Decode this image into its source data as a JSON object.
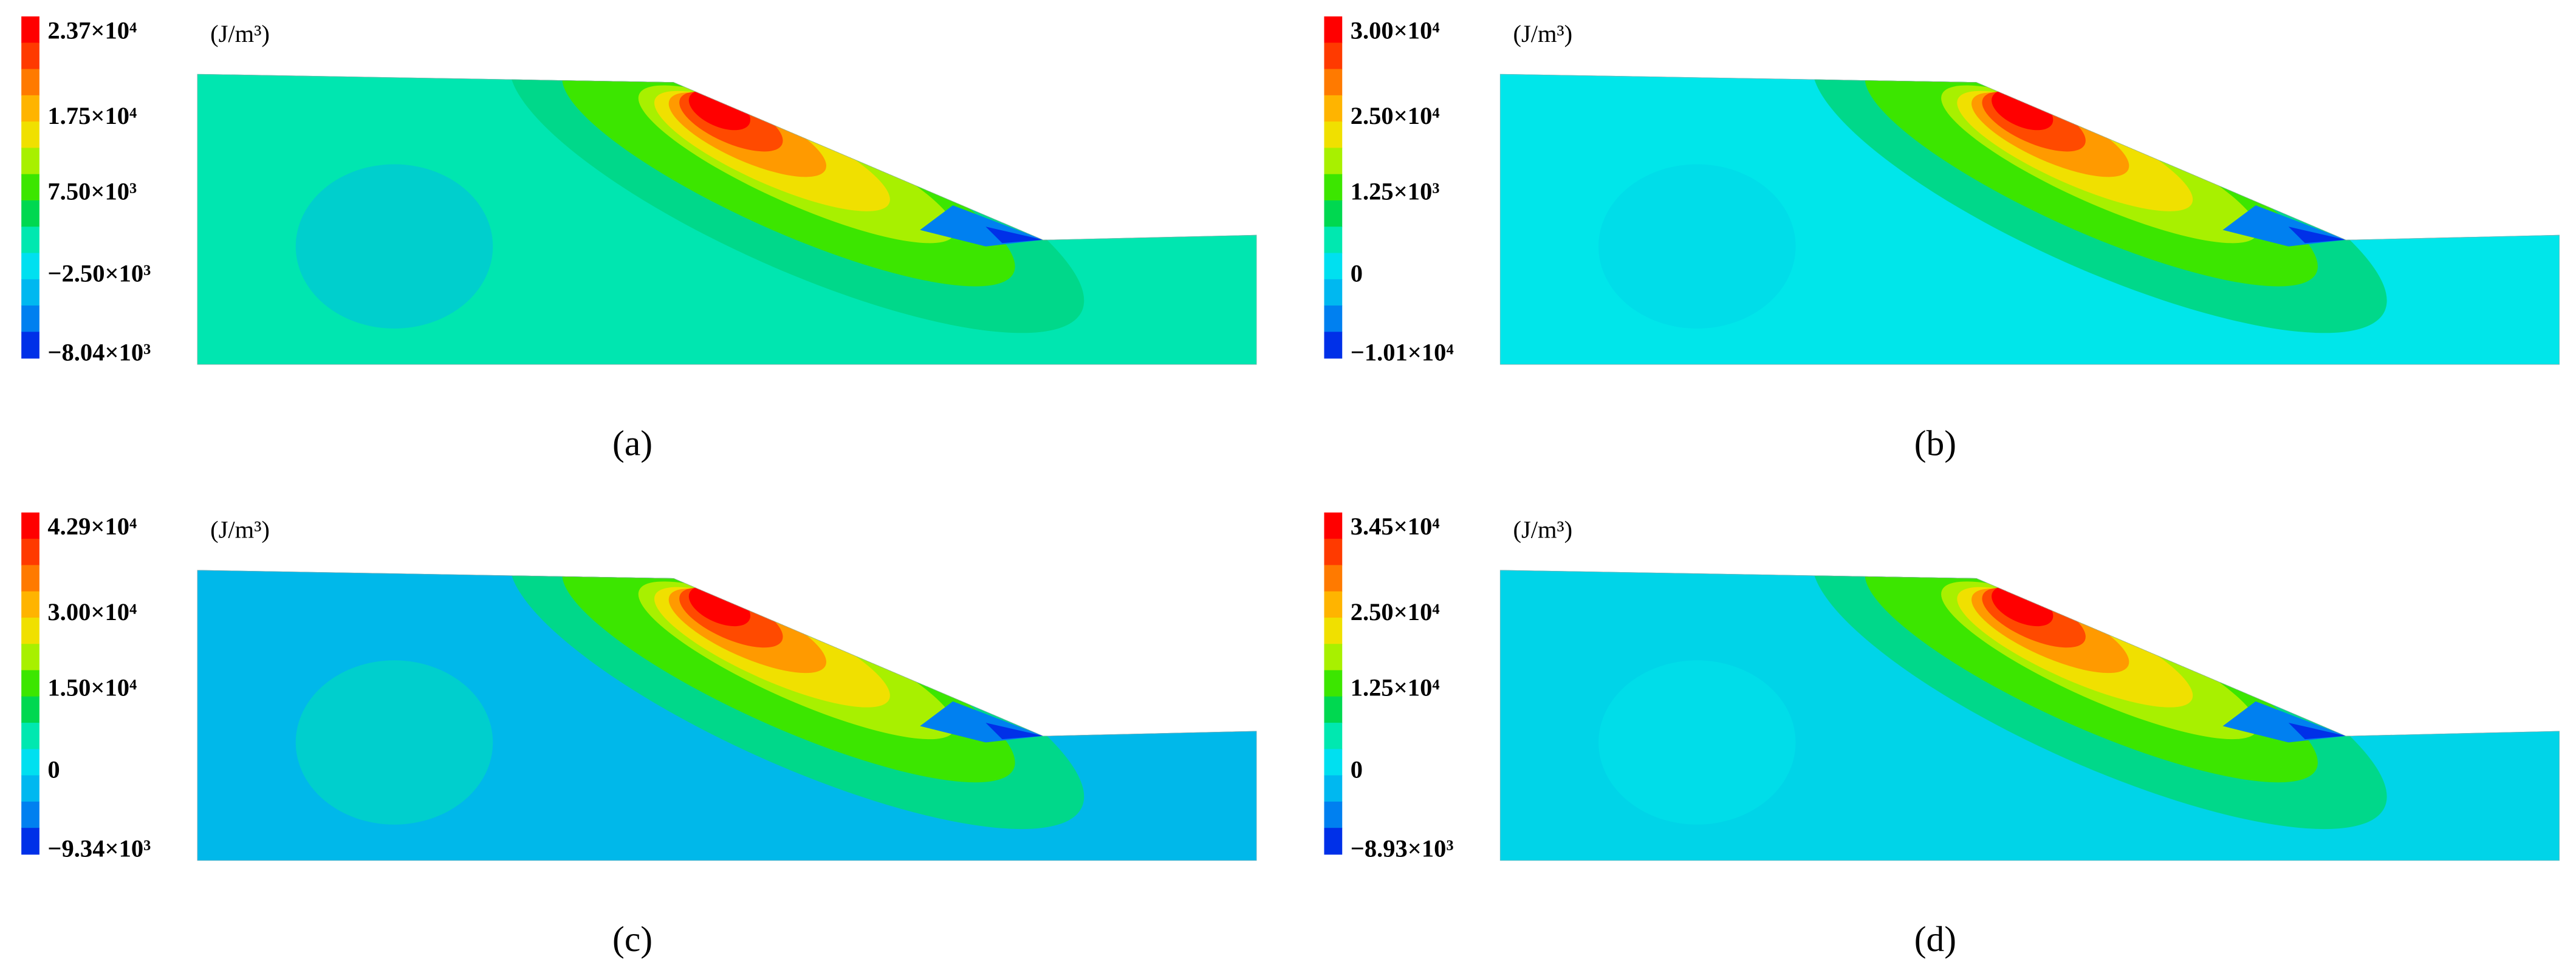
{
  "panels": [
    {
      "colorbar_labels": [
        "2.37×10⁴",
        "1.75×10⁴",
        "7.50×10³",
        "−2.50×10³",
        "−8.04×10³"
      ],
      "unit": "(J/m³)",
      "caption": "(a)"
    },
    {
      "colorbar_labels": [
        "3.00×10⁴",
        "2.50×10⁴",
        "1.25×10³",
        "0",
        "−1.01×10⁴"
      ],
      "unit": "(J/m³)",
      "caption": "(b)"
    },
    {
      "colorbar_labels": [
        "4.29×10⁴",
        "3.00×10⁴",
        "1.50×10⁴",
        "0",
        "−9.34×10³"
      ],
      "unit": "(J/m³)",
      "caption": "(c)"
    },
    {
      "colorbar_labels": [
        "3.45×10⁴",
        "2.50×10⁴",
        "1.25×10⁴",
        "0",
        "−8.93×10³"
      ],
      "unit": "(J/m³)",
      "caption": "(d)"
    }
  ]
}
